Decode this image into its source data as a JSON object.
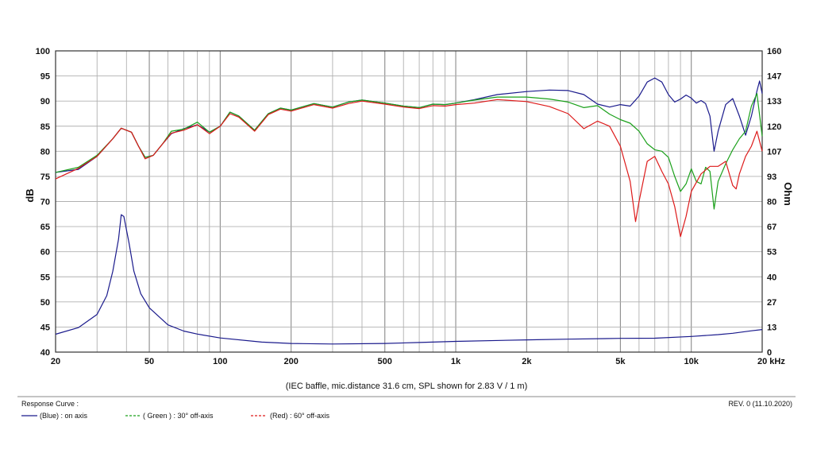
{
  "chart_data": {
    "type": "line",
    "xscale": "log",
    "xlim": [
      20,
      20000
    ],
    "ylim": [
      40,
      100
    ],
    "y2lim": [
      0,
      160
    ],
    "ylabel": "dB",
    "y2label": "Ohm",
    "grid": true,
    "caption": "(IEC baffle, mic.distance 31.6 cm, SPL shown for 2.83 V / 1 m)",
    "x_ticks": [
      {
        "v": 20,
        "label": "20"
      },
      {
        "v": 50,
        "label": "50"
      },
      {
        "v": 100,
        "label": "100"
      },
      {
        "v": 200,
        "label": "200"
      },
      {
        "v": 500,
        "label": "500"
      },
      {
        "v": 1000,
        "label": "1k"
      },
      {
        "v": 2000,
        "label": "2k"
      },
      {
        "v": 5000,
        "label": "5k"
      },
      {
        "v": 10000,
        "label": "10k"
      },
      {
        "v": 20000,
        "label": "20 kHz"
      }
    ],
    "y_ticks": [
      "100",
      "95",
      "90",
      "85",
      "80",
      "75",
      "70",
      "65",
      "60",
      "55",
      "50",
      "45",
      "40"
    ],
    "y2_ticks": [
      "160",
      "147",
      "133",
      "120",
      "107",
      "93",
      "80",
      "67",
      "53",
      "40",
      "27",
      "13",
      "0"
    ],
    "series": [
      {
        "name": "(Blue)  : on axis",
        "color": "#1a1a8c",
        "points": [
          [
            20,
            75.8
          ],
          [
            25,
            76.4
          ],
          [
            30,
            79
          ],
          [
            35,
            82.5
          ],
          [
            38,
            84.6
          ],
          [
            42,
            83.8
          ],
          [
            45,
            81
          ],
          [
            48,
            78.8
          ],
          [
            52,
            79.2
          ],
          [
            57,
            81.5
          ],
          [
            62,
            83.5
          ],
          [
            70,
            84.5
          ],
          [
            80,
            85.3
          ],
          [
            90,
            83.8
          ],
          [
            100,
            85
          ],
          [
            110,
            87.8
          ],
          [
            120,
            87
          ],
          [
            140,
            84.2
          ],
          [
            160,
            87.5
          ],
          [
            180,
            88.6
          ],
          [
            200,
            88.2
          ],
          [
            250,
            89.5
          ],
          [
            300,
            88.8
          ],
          [
            350,
            89.8
          ],
          [
            400,
            90.2
          ],
          [
            500,
            89.6
          ],
          [
            600,
            89
          ],
          [
            700,
            88.7
          ],
          [
            800,
            89.4
          ],
          [
            900,
            89.3
          ],
          [
            1000,
            89.6
          ],
          [
            1200,
            90.3
          ],
          [
            1500,
            91.3
          ],
          [
            2000,
            91.9
          ],
          [
            2500,
            92.2
          ],
          [
            3000,
            92.1
          ],
          [
            3500,
            91.3
          ],
          [
            4000,
            89.4
          ],
          [
            4500,
            88.8
          ],
          [
            5000,
            89.3
          ],
          [
            5500,
            89
          ],
          [
            6000,
            91
          ],
          [
            6500,
            93.8
          ],
          [
            7000,
            94.6
          ],
          [
            7500,
            93.8
          ],
          [
            8000,
            91.3
          ],
          [
            8500,
            89.8
          ],
          [
            9000,
            90.4
          ],
          [
            9500,
            91.2
          ],
          [
            10000,
            90.6
          ],
          [
            10500,
            89.6
          ],
          [
            11000,
            90.1
          ],
          [
            11500,
            89.5
          ],
          [
            12000,
            87
          ],
          [
            12500,
            80
          ],
          [
            13000,
            84
          ],
          [
            14000,
            89.3
          ],
          [
            15000,
            90.5
          ],
          [
            16000,
            87
          ],
          [
            17000,
            83.2
          ],
          [
            18000,
            87
          ],
          [
            19000,
            92
          ],
          [
            19500,
            94
          ],
          [
            20000,
            91.5
          ]
        ]
      },
      {
        "name": "( Green ) : 30° off-axis",
        "color": "#1aa01a",
        "points": [
          [
            20,
            75.8
          ],
          [
            25,
            76.8
          ],
          [
            30,
            79.2
          ],
          [
            35,
            82.5
          ],
          [
            38,
            84.6
          ],
          [
            42,
            83.8
          ],
          [
            45,
            81
          ],
          [
            48,
            78.8
          ],
          [
            52,
            79.2
          ],
          [
            57,
            81.5
          ],
          [
            62,
            84
          ],
          [
            70,
            84.4
          ],
          [
            80,
            85.8
          ],
          [
            90,
            83.8
          ],
          [
            100,
            85
          ],
          [
            110,
            87.8
          ],
          [
            120,
            87
          ],
          [
            140,
            84.2
          ],
          [
            160,
            87.5
          ],
          [
            180,
            88.6
          ],
          [
            200,
            88.2
          ],
          [
            250,
            89.5
          ],
          [
            300,
            88.8
          ],
          [
            350,
            89.8
          ],
          [
            400,
            90.2
          ],
          [
            500,
            89.6
          ],
          [
            600,
            89
          ],
          [
            700,
            88.7
          ],
          [
            800,
            89.4
          ],
          [
            900,
            89.3
          ],
          [
            1000,
            89.6
          ],
          [
            1200,
            90.2
          ],
          [
            1500,
            90.8
          ],
          [
            2000,
            90.8
          ],
          [
            2500,
            90.4
          ],
          [
            3000,
            89.8
          ],
          [
            3500,
            88.7
          ],
          [
            4000,
            89.1
          ],
          [
            4500,
            87.4
          ],
          [
            5000,
            86.3
          ],
          [
            5500,
            85.6
          ],
          [
            6000,
            84
          ],
          [
            6500,
            81.5
          ],
          [
            7000,
            80.3
          ],
          [
            7500,
            80
          ],
          [
            8000,
            78.8
          ],
          [
            8500,
            75
          ],
          [
            9000,
            72
          ],
          [
            9500,
            73.5
          ],
          [
            10000,
            76.5
          ],
          [
            10500,
            74
          ],
          [
            11000,
            73.5
          ],
          [
            11500,
            76.8
          ],
          [
            12000,
            76
          ],
          [
            12500,
            68.5
          ],
          [
            13000,
            74
          ],
          [
            14000,
            77.5
          ],
          [
            15000,
            80.3
          ],
          [
            16000,
            82.5
          ],
          [
            17000,
            84
          ],
          [
            18000,
            89
          ],
          [
            19000,
            91.5
          ],
          [
            20000,
            83
          ]
        ]
      },
      {
        "name": "(Red) : 60° off-axis",
        "color": "#dd1a1a",
        "points": [
          [
            20,
            74.5
          ],
          [
            25,
            76.6
          ],
          [
            30,
            79
          ],
          [
            35,
            82.5
          ],
          [
            38,
            84.6
          ],
          [
            42,
            83.8
          ],
          [
            45,
            81
          ],
          [
            48,
            78.5
          ],
          [
            52,
            79.2
          ],
          [
            57,
            81.5
          ],
          [
            62,
            83.6
          ],
          [
            70,
            84.2
          ],
          [
            80,
            85.3
          ],
          [
            90,
            83.5
          ],
          [
            100,
            85
          ],
          [
            110,
            87.5
          ],
          [
            120,
            86.8
          ],
          [
            140,
            84
          ],
          [
            160,
            87.3
          ],
          [
            180,
            88.4
          ],
          [
            200,
            88
          ],
          [
            250,
            89.3
          ],
          [
            300,
            88.6
          ],
          [
            350,
            89.5
          ],
          [
            400,
            90
          ],
          [
            500,
            89.4
          ],
          [
            600,
            88.8
          ],
          [
            700,
            88.5
          ],
          [
            800,
            89.1
          ],
          [
            900,
            89
          ],
          [
            1000,
            89.3
          ],
          [
            1200,
            89.6
          ],
          [
            1500,
            90.3
          ],
          [
            2000,
            89.9
          ],
          [
            2500,
            88.9
          ],
          [
            3000,
            87.5
          ],
          [
            3500,
            84.5
          ],
          [
            4000,
            86
          ],
          [
            4500,
            85
          ],
          [
            5000,
            81
          ],
          [
            5500,
            74
          ],
          [
            5800,
            66
          ],
          [
            6000,
            70
          ],
          [
            6500,
            78
          ],
          [
            7000,
            79
          ],
          [
            7500,
            76
          ],
          [
            8000,
            73.5
          ],
          [
            8500,
            69
          ],
          [
            9000,
            63
          ],
          [
            9500,
            67
          ],
          [
            10000,
            72
          ],
          [
            11000,
            75.5
          ],
          [
            12000,
            77
          ],
          [
            13000,
            77
          ],
          [
            14000,
            78
          ],
          [
            15000,
            73.2
          ],
          [
            15500,
            72.5
          ],
          [
            16000,
            75.5
          ],
          [
            17000,
            79
          ],
          [
            18000,
            81
          ],
          [
            19000,
            84
          ],
          [
            20000,
            80
          ]
        ]
      },
      {
        "name": "Impedance",
        "color": "#1a1a8c",
        "axis": "y2",
        "points": [
          [
            20,
            9.5
          ],
          [
            25,
            13
          ],
          [
            30,
            20
          ],
          [
            33,
            30
          ],
          [
            35,
            43
          ],
          [
            37,
            60
          ],
          [
            38,
            73
          ],
          [
            39,
            72
          ],
          [
            41,
            58
          ],
          [
            43,
            43
          ],
          [
            46,
            31
          ],
          [
            50,
            23.5
          ],
          [
            60,
            14.5
          ],
          [
            70,
            11.2
          ],
          [
            80,
            9.6
          ],
          [
            100,
            7.5
          ],
          [
            150,
            5.3
          ],
          [
            200,
            4.6
          ],
          [
            300,
            4.3
          ],
          [
            500,
            4.6
          ],
          [
            700,
            5.1
          ],
          [
            1000,
            5.7
          ],
          [
            2000,
            6.5
          ],
          [
            3000,
            6.9
          ],
          [
            5000,
            7.3
          ],
          [
            7000,
            7.4
          ],
          [
            10000,
            8.3
          ],
          [
            13000,
            9.3
          ],
          [
            15000,
            10
          ],
          [
            18000,
            11.3
          ],
          [
            20000,
            12
          ]
        ]
      }
    ],
    "legend": {
      "title": "Response Curve :",
      "position": "bottom-left",
      "revision": "REV. 0 (11.10.2020)"
    }
  }
}
